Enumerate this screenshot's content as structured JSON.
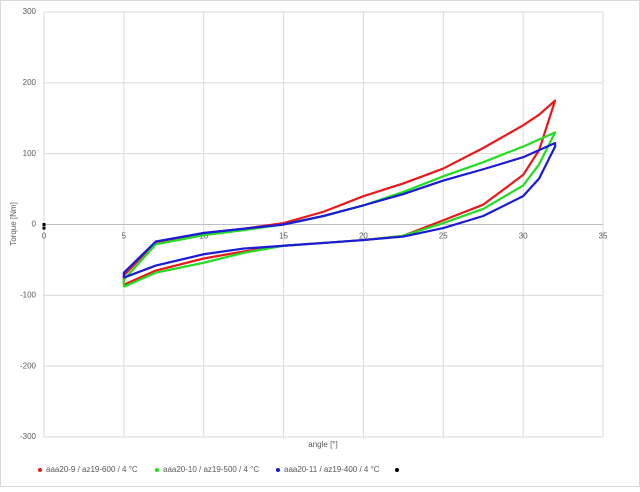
{
  "chart_data": {
    "type": "line",
    "xlabel": "angle [°]",
    "ylabel": "Torque [Nm]",
    "xlim": [
      0,
      35
    ],
    "xticks": [
      0,
      5,
      10,
      15,
      20,
      25,
      30,
      35
    ],
    "ylim": [
      -300,
      300
    ],
    "yticks": [
      -300,
      -200,
      -100,
      0,
      100,
      200,
      300
    ],
    "grid": true,
    "legend": "bottom",
    "series": [
      {
        "name": "aaa20-9 / az19-600 / 4 °C",
        "color": "#e8191c",
        "x": [
          5,
          7,
          10,
          12.5,
          15,
          17.5,
          20,
          22.5,
          25,
          27.5,
          30,
          31,
          32,
          32,
          31,
          30,
          27.5,
          25,
          22.5,
          20,
          17.5,
          15,
          12.5,
          10,
          7,
          5,
          5
        ],
        "values": [
          -85,
          -65,
          -48,
          -38,
          -30,
          -26,
          -22,
          -16,
          6,
          28,
          70,
          105,
          175,
          175,
          155,
          140,
          108,
          79,
          58,
          40,
          18,
          2,
          -6,
          -12,
          -25,
          -72,
          -85
        ]
      },
      {
        "name": "aaa20-10 / az19-500 / 4 °C",
        "color": "#22dd22",
        "x": [
          5,
          7,
          10,
          12.5,
          15,
          17.5,
          20,
          22.5,
          25,
          27.5,
          30,
          31,
          32,
          32,
          31,
          30,
          27.5,
          25,
          22.5,
          20,
          17.5,
          15,
          12.5,
          10,
          7,
          5,
          5
        ],
        "values": [
          -88,
          -68,
          -54,
          -40,
          -30,
          -26,
          -22,
          -16,
          2,
          22,
          55,
          85,
          130,
          130,
          120,
          110,
          88,
          68,
          46,
          27,
          12,
          0,
          -8,
          -15,
          -28,
          -78,
          -88
        ]
      },
      {
        "name": "aaa20-11 / az19-400 / 4 °C",
        "color": "#1a1ad8",
        "x": [
          5,
          7,
          10,
          12.5,
          15,
          17.5,
          20,
          22.5,
          25,
          27.5,
          30,
          31,
          32,
          32,
          31,
          30,
          27.5,
          25,
          22.5,
          20,
          17.5,
          15,
          12.5,
          10,
          7,
          5,
          5
        ],
        "values": [
          -75,
          -58,
          -42,
          -34,
          -30,
          -26,
          -22,
          -17,
          -5,
          12,
          40,
          65,
          110,
          115,
          105,
          95,
          78,
          62,
          43,
          27,
          12,
          0,
          -6,
          -12,
          -24,
          -68,
          -75
        ]
      },
      {
        "color": "#000000",
        "x": [
          0,
          0
        ],
        "values": [
          0,
          -5
        ]
      }
    ]
  }
}
